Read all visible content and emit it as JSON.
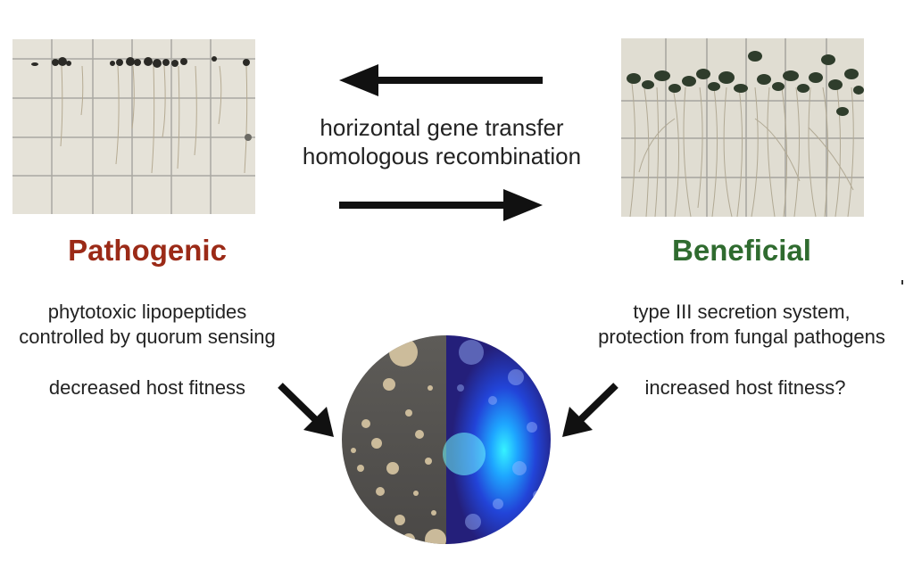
{
  "colors": {
    "pathogenic": "#9b2a17",
    "beneficial": "#2f6b2f",
    "arrow": "#111111"
  },
  "center": {
    "line1": "horizontal gene transfer",
    "line2": "homologous recombination"
  },
  "left": {
    "title": "Pathogenic",
    "desc_line1": "phytotoxic lipopeptides",
    "desc_line2": "controlled by quorum sensing",
    "fitness": "decreased host fitness",
    "image": "seedling-plate-stunted"
  },
  "right": {
    "title": "Beneficial",
    "desc_line1": "type III secretion system,",
    "desc_line2": "protection from fungal pathogens",
    "fitness": "increased host fitness?",
    "image": "seedling-plate-healthy"
  },
  "bottom": {
    "image": "bacterial-colonies-split-fluorescence"
  }
}
